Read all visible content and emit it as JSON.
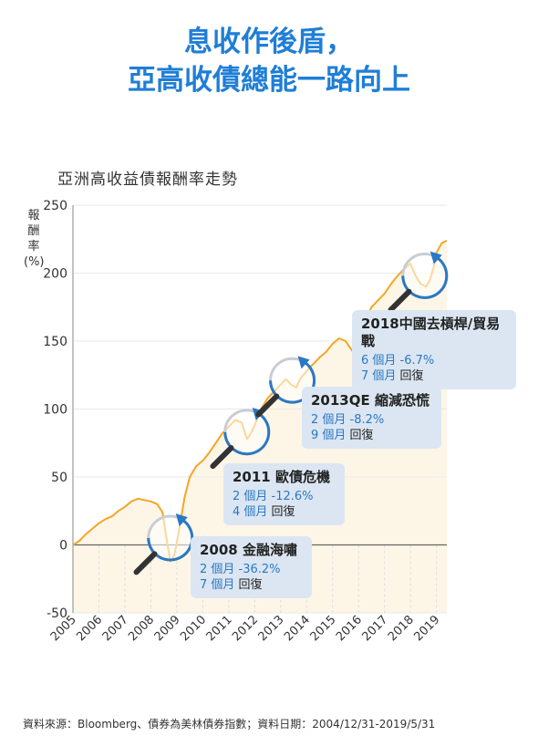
{
  "title_line1": "息收作後盾，",
  "title_line2": "亞高收債總能一路向上",
  "chart_data": {
    "type": "line",
    "title": "亞洲高收益債報酬率走勢",
    "ylabel_chars": [
      "報",
      "酬",
      "率"
    ],
    "ylabel_unit": "(%)",
    "ylim": [
      -50,
      250
    ],
    "yticks": [
      -50,
      0,
      50,
      100,
      150,
      200,
      250
    ],
    "xticks": [
      "2005",
      "2006",
      "2007",
      "2008",
      "2009",
      "2010",
      "2011",
      "2012",
      "2013",
      "2014",
      "2015",
      "2016",
      "2017",
      "2018",
      "2019"
    ],
    "xlim": [
      2005,
      2019.4
    ],
    "series": [
      {
        "x": [
          2005.0,
          2005.25,
          2005.5,
          2005.75,
          2006.0,
          2006.25,
          2006.5,
          2006.75,
          2007.0,
          2007.25,
          2007.5,
          2007.75,
          2008.0,
          2008.25,
          2008.45,
          2008.6,
          2008.75,
          2008.9,
          2009.0,
          2009.15,
          2009.3,
          2009.5,
          2009.75,
          2010.0,
          2010.25,
          2010.5,
          2010.75,
          2011.0,
          2011.25,
          2011.5,
          2011.7,
          2011.85,
          2012.0,
          2012.25,
          2012.5,
          2012.75,
          2013.0,
          2013.2,
          2013.4,
          2013.6,
          2013.75,
          2014.0,
          2014.25,
          2014.5,
          2014.75,
          2015.0,
          2015.25,
          2015.5,
          2015.75,
          2016.0,
          2016.25,
          2016.5,
          2016.75,
          2017.0,
          2017.25,
          2017.5,
          2017.75,
          2018.0,
          2018.2,
          2018.4,
          2018.6,
          2018.75,
          2018.9,
          2019.0,
          2019.2,
          2019.4
        ],
        "values": [
          0,
          3,
          8,
          12,
          16,
          19,
          21,
          25,
          28,
          32,
          34,
          33,
          32,
          30,
          24,
          5,
          -12,
          -8,
          2,
          18,
          35,
          50,
          58,
          62,
          68,
          75,
          82,
          87,
          92,
          90,
          78,
          82,
          88,
          100,
          108,
          113,
          118,
          122,
          118,
          116,
          122,
          128,
          133,
          138,
          142,
          148,
          152,
          150,
          143,
          150,
          165,
          175,
          180,
          185,
          192,
          198,
          203,
          207,
          198,
          192,
          190,
          195,
          205,
          215,
          222,
          224
        ]
      }
    ],
    "annotations": [
      {
        "name": "2008",
        "head": "2008 金融海嘯",
        "drop": "2 個月 -36.2%",
        "recovery_value": "7 個月",
        "recovery_word": "回復"
      },
      {
        "name": "2011",
        "head": "2011 歐債危機",
        "drop": "2 個月 -12.6%",
        "recovery_value": "4 個月",
        "recovery_word": "回復"
      },
      {
        "name": "2013",
        "head": "2013QE 縮減恐慌",
        "drop": "2 個月 -8.2%",
        "recovery_value": "9 個月",
        "recovery_word": "回復"
      },
      {
        "name": "2018",
        "head": "2018中國去槓桿/貿易戰",
        "drop": "6 個月 -6.7%",
        "recovery_value": "7 個月",
        "recovery_word": "回復"
      }
    ]
  },
  "colors": {
    "title": "#1f7ed6",
    "line": "#f5a623",
    "fill": "#fdf6e7",
    "callout_bg": "#dbe6f2",
    "ring": "#2a78c4",
    "drop_text": "#2a78c4"
  },
  "source": "資料來源：Bloomberg、債券為美林債券指數；資料日期：2004/12/31-2019/5/31"
}
